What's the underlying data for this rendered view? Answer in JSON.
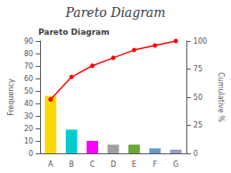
{
  "chart_data": {
    "type": "bar",
    "title": "Pareto Diagram",
    "subtitle": "Pareto Diagram",
    "categories": [
      "A",
      "B",
      "C",
      "D",
      "E",
      "F",
      "G"
    ],
    "series": [
      {
        "type": "bar",
        "colors": [
          "#FFD700",
          "#00CCCC",
          "#FF00FF",
          "#A0A0A0",
          "#66AA33",
          "#6699CC",
          "#9999CC"
        ],
        "values": [
          46,
          19,
          10,
          7,
          7,
          4,
          3
        ]
      },
      {
        "type": "line",
        "axis": "y2",
        "color": "#FF0000",
        "marker": "circle",
        "values": [
          48,
          68,
          78,
          85,
          92,
          96,
          100
        ]
      }
    ],
    "ylabel": "Frequency",
    "y2label": "Cumulative %",
    "ylim": [
      0,
      90
    ],
    "yticks": [
      0,
      10,
      20,
      30,
      40,
      50,
      60,
      70,
      80,
      90
    ],
    "y2lim": [
      0,
      100
    ],
    "y2ticks": [
      0,
      25,
      50,
      75,
      100
    ],
    "grid": false
  }
}
